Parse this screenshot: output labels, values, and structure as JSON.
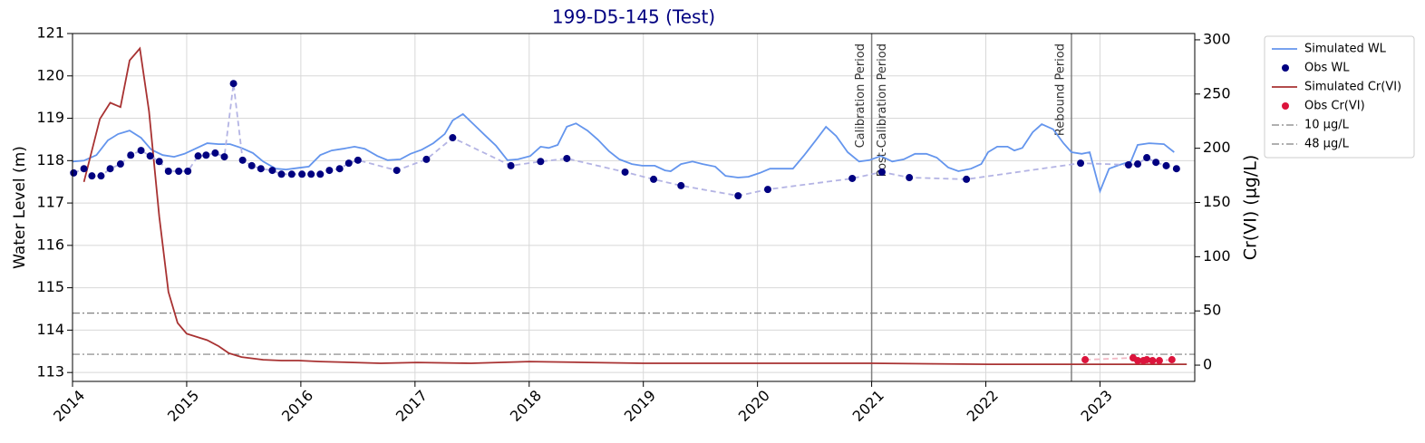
{
  "chart_data": {
    "type": "line",
    "title": "199-D5-145 (Test)",
    "y_label": "Water Level (m)",
    "y2_label": "Cr(VI) (µg/L)",
    "xlim": [
      2014,
      2023.83
    ],
    "xticks": [
      2014,
      2015,
      2016,
      2017,
      2018,
      2019,
      2020,
      2021,
      2022,
      2023
    ],
    "ylim": [
      112.79,
      121
    ],
    "yticks": [
      113,
      114,
      115,
      116,
      117,
      118,
      119,
      120,
      121
    ],
    "y2lim": [
      -15,
      305.8
    ],
    "y2ticks": [
      0,
      50,
      100,
      150,
      200,
      250,
      300
    ],
    "grid": true,
    "legend": "outside upper right",
    "series": [
      {
        "name": "Simulated WL",
        "kind": "line",
        "color": "#6495ed",
        "axis": "y",
        "x": [
          2014.0,
          2014.1,
          2014.21,
          2014.31,
          2014.4,
          2014.5,
          2014.6,
          2014.69,
          2014.79,
          2014.89,
          2014.98,
          2015.09,
          2015.18,
          2015.28,
          2015.38,
          2015.48,
          2015.58,
          2015.67,
          2015.78,
          2015.87,
          2015.98,
          2016.07,
          2016.17,
          2016.27,
          2016.37,
          2016.47,
          2016.56,
          2016.67,
          2016.76,
          2016.87,
          2016.96,
          2017.06,
          2017.16,
          2017.26,
          2017.33,
          2017.42,
          2017.52,
          2017.62,
          2017.71,
          2017.81,
          2017.9,
          2018.01,
          2018.1,
          2018.17,
          2018.25,
          2018.33,
          2018.41,
          2018.51,
          2018.6,
          2018.7,
          2018.79,
          2018.9,
          2018.99,
          2019.1,
          2019.19,
          2019.24,
          2019.33,
          2019.43,
          2019.52,
          2019.63,
          2019.72,
          2019.83,
          2019.92,
          2020.02,
          2020.11,
          2020.21,
          2020.31,
          2020.41,
          2020.51,
          2020.6,
          2020.69,
          2020.79,
          2020.89,
          2020.98,
          2021.08,
          2021.18,
          2021.28,
          2021.38,
          2021.48,
          2021.57,
          2021.67,
          2021.76,
          2021.87,
          2021.96,
          2022.02,
          2022.1,
          2022.19,
          2022.25,
          2022.32,
          2022.41,
          2022.49,
          2022.59,
          2022.68,
          2022.75,
          2022.84,
          2022.91,
          2023.0,
          2023.08,
          2023.17,
          2023.27,
          2023.33,
          2023.43,
          2023.56,
          2023.65
        ],
        "values": [
          117.98,
          118.0,
          118.13,
          118.48,
          118.63,
          118.71,
          118.54,
          118.26,
          118.13,
          118.09,
          118.16,
          118.3,
          118.41,
          118.39,
          118.39,
          118.3,
          118.18,
          117.98,
          117.81,
          117.79,
          117.83,
          117.86,
          118.13,
          118.24,
          118.28,
          118.33,
          118.28,
          118.11,
          118.01,
          118.03,
          118.16,
          118.26,
          118.41,
          118.63,
          118.95,
          119.1,
          118.84,
          118.58,
          118.35,
          118.01,
          118.03,
          118.11,
          118.33,
          118.3,
          118.37,
          118.8,
          118.88,
          118.71,
          118.5,
          118.22,
          118.03,
          117.92,
          117.88,
          117.88,
          117.77,
          117.75,
          117.92,
          117.98,
          117.92,
          117.86,
          117.64,
          117.6,
          117.62,
          117.71,
          117.81,
          117.81,
          117.81,
          118.13,
          118.48,
          118.8,
          118.58,
          118.2,
          117.98,
          118.01,
          118.11,
          117.98,
          118.03,
          118.16,
          118.16,
          118.07,
          117.84,
          117.75,
          117.81,
          117.92,
          118.2,
          118.33,
          118.33,
          118.24,
          118.3,
          118.67,
          118.86,
          118.74,
          118.41,
          118.2,
          118.16,
          118.2,
          117.28,
          117.81,
          117.9,
          117.98,
          118.37,
          118.41,
          118.39,
          118.2
        ]
      },
      {
        "name": "Obs WL",
        "kind": "scatter",
        "color": "#000080",
        "connect_color": "#b4b4e4",
        "axis": "y",
        "x": [
          2014.01,
          2014.1,
          2014.17,
          2014.25,
          2014.33,
          2014.42,
          2014.51,
          2014.6,
          2014.68,
          2014.76,
          2014.84,
          2014.93,
          2015.01,
          2015.1,
          2015.17,
          2015.25,
          2015.33,
          2015.41,
          2015.49,
          2015.57,
          2015.65,
          2015.75,
          2015.83,
          2015.92,
          2016.01,
          2016.09,
          2016.17,
          2016.25,
          2016.34,
          2016.42,
          2016.5,
          2016.84,
          2017.1,
          2017.33,
          2017.84,
          2018.1,
          2018.33,
          2018.84,
          2019.09,
          2019.33,
          2019.83,
          2020.09,
          2020.83,
          2021.09,
          2021.33,
          2021.83,
          2022.83,
          2023.25,
          2023.33,
          2023.41,
          2023.49,
          2023.58,
          2023.67
        ],
        "values": [
          117.71,
          117.81,
          117.64,
          117.64,
          117.81,
          117.92,
          118.13,
          118.24,
          118.11,
          117.98,
          117.75,
          117.75,
          117.75,
          118.11,
          118.13,
          118.18,
          118.09,
          119.82,
          118.01,
          117.88,
          117.81,
          117.77,
          117.68,
          117.68,
          117.68,
          117.68,
          117.68,
          117.77,
          117.81,
          117.94,
          118.01,
          117.77,
          118.03,
          118.54,
          117.88,
          117.98,
          118.05,
          117.73,
          117.56,
          117.41,
          117.17,
          117.32,
          117.58,
          117.73,
          117.6,
          117.56,
          117.94,
          117.9,
          117.92,
          118.07,
          117.96,
          117.88,
          117.81
        ]
      },
      {
        "name": "Simulated Cr(VI)",
        "kind": "line",
        "color": "#a83232",
        "axis": "y2",
        "x": [
          2014.1,
          2014.24,
          2014.33,
          2014.42,
          2014.5,
          2014.59,
          2014.67,
          2014.76,
          2014.84,
          2014.92,
          2015.0,
          2015.18,
          2015.28,
          2015.37,
          2015.48,
          2015.67,
          2015.83,
          2015.98,
          2016.17,
          2016.46,
          2016.7,
          2017.02,
          2017.49,
          2018.0,
          2018.52,
          2019.0,
          2021.0,
          2022.02,
          2023.76
        ],
        "values": [
          169,
          227,
          242,
          238,
          281,
          292,
          234,
          137,
          67.5,
          39,
          29,
          23,
          17.5,
          11,
          7.5,
          5,
          4.2,
          4.2,
          3.3,
          2.5,
          1.7,
          2.5,
          1.7,
          3.3,
          2.5,
          1.7,
          1.7,
          0.8,
          0.8
        ]
      },
      {
        "name": "Obs Cr(VI)",
        "kind": "scatter",
        "color": "#dc143c",
        "connect_color": "#f2b8c4",
        "axis": "y2",
        "x": [
          2022.87,
          2023.29,
          2023.33,
          2023.38,
          2023.41,
          2023.46,
          2023.52,
          2023.63
        ],
        "values": [
          5,
          6.7,
          4.2,
          4.2,
          5,
          4.2,
          4.2,
          5
        ]
      }
    ],
    "hlines": [
      {
        "name": "10 µg/L",
        "value": 10,
        "axis": "y2",
        "color": "#808080"
      },
      {
        "name": "48 µg/L",
        "value": 48,
        "axis": "y2",
        "color": "#808080"
      }
    ],
    "vlines": [
      2021,
      2022.75
    ],
    "annotations": [
      {
        "x": 2021,
        "text": "Calibration Period",
        "side": "left"
      },
      {
        "x": 2021,
        "text": "Post-Calibration Period",
        "side": "right"
      },
      {
        "x": 2022.75,
        "text": "Rebound Period",
        "side": "left"
      }
    ]
  }
}
